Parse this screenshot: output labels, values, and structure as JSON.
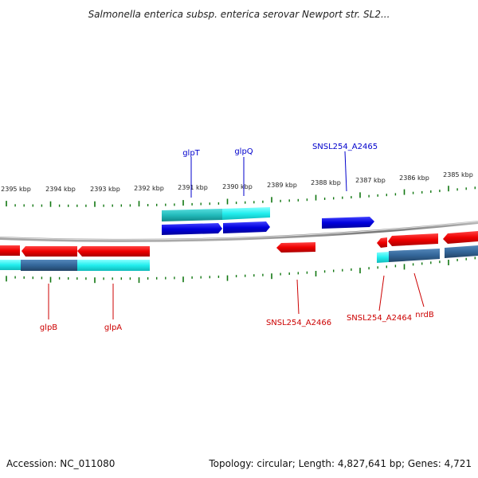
{
  "header": {
    "title": "Salmonella enterica subsp. enterica serovar Newport str. SL2..."
  },
  "footer": {
    "accession": "Accession: NC_011080",
    "summary": "Topology: circular; Length: 4,827,641 bp; Genes: 4,721"
  },
  "scale": {
    "tick_labels": [
      "2395 kbp",
      "2394 kbp",
      "2393 kbp",
      "2392 kbp",
      "2391 kbp",
      "2390 kbp",
      "2389 kbp",
      "2388 kbp",
      "2387 kbp",
      "2386 kbp",
      "2385 kbp"
    ]
  },
  "colors": {
    "forward_gene": "#0000dd",
    "forward_cds": "#22cccc",
    "reverse_gene": "#ee0000",
    "reverse_cds": "#00dddd",
    "tick": "#117711",
    "backbone": "#888888",
    "forward_label": "#0000cc",
    "reverse_label": "#cc0000"
  },
  "genes": {
    "forward": [
      {
        "name": "glpT"
      },
      {
        "name": "glpQ"
      },
      {
        "name": "SNSL254_A2465"
      }
    ],
    "reverse": [
      {
        "name": "glpB"
      },
      {
        "name": "glpA"
      },
      {
        "name": "SNSL254_A2466"
      },
      {
        "name": "SNSL254_A2464"
      },
      {
        "name": "nrdB"
      }
    ]
  }
}
